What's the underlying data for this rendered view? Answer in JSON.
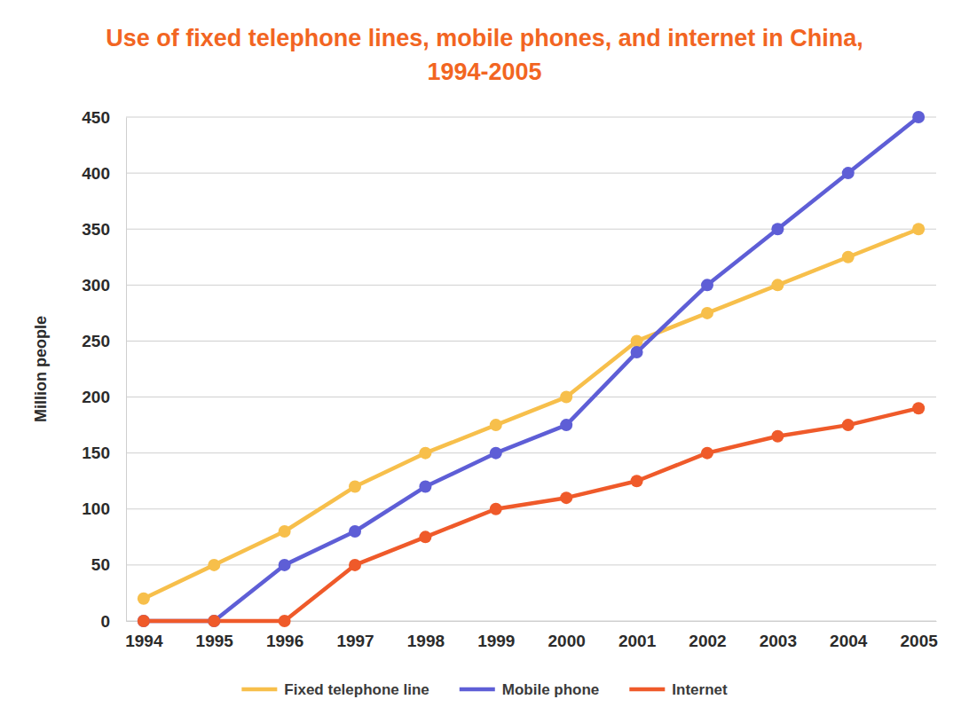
{
  "chart_data": {
    "type": "line",
    "title": "Use of fixed telephone lines, mobile phones, and internet in China, 1994-2005",
    "y_label": "Million people",
    "categories": [
      "1994",
      "1995",
      "1996",
      "1997",
      "1998",
      "1999",
      "2000",
      "2001",
      "2002",
      "2003",
      "2004",
      "2005"
    ],
    "series": [
      {
        "name": "Fixed telephone line",
        "color": "#f7bf4b",
        "marker": "circle",
        "line_style": "solid",
        "values": [
          20,
          50,
          80,
          120,
          150,
          175,
          200,
          250,
          275,
          300,
          325,
          350
        ]
      },
      {
        "name": "Mobile phone",
        "color": "#5e5ed6",
        "marker": "circle",
        "line_style": "solid",
        "values": [
          0,
          0,
          50,
          80,
          120,
          150,
          175,
          240,
          300,
          350,
          400,
          450
        ]
      },
      {
        "name": "Internet",
        "color": "#ef5a2a",
        "marker": "circle",
        "line_style": "solid",
        "values": [
          0,
          0,
          0,
          50,
          75,
          100,
          110,
          125,
          150,
          165,
          175,
          190
        ]
      }
    ],
    "ylim": [
      0,
      450
    ],
    "yticks": [
      0,
      50,
      100,
      150,
      200,
      250,
      300,
      350,
      400,
      450
    ],
    "grid": true,
    "legend": "bottom"
  }
}
